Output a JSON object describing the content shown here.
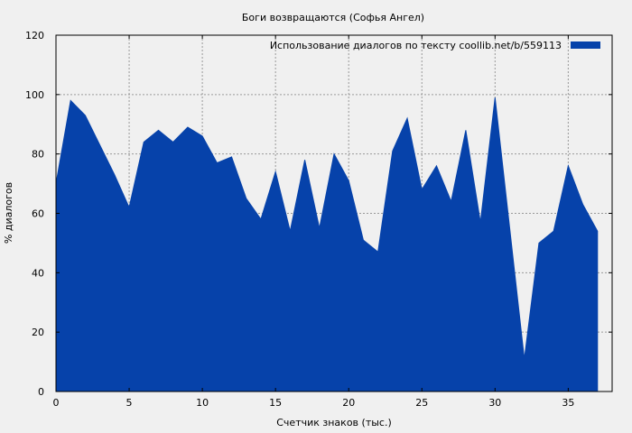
{
  "chart_data": {
    "type": "area",
    "title": "Боги возвращаются (Софья Ангел)",
    "xlabel": "Счетчик знаков (тыс.)",
    "ylabel": "% диалогов",
    "xlim": [
      0,
      38
    ],
    "ylim": [
      0,
      120
    ],
    "xticks": [
      0,
      5,
      10,
      15,
      20,
      25,
      30,
      35
    ],
    "yticks": [
      0,
      20,
      40,
      60,
      80,
      100,
      120
    ],
    "grid": true,
    "legend_position": "top-right",
    "series": [
      {
        "name": "Использование диалогов по тексту  coollib.net/b/559113",
        "color": "#0642aa",
        "x": [
          0,
          1,
          2,
          3,
          4,
          5,
          6,
          7,
          8,
          9,
          10,
          11,
          12,
          13,
          14,
          15,
          16,
          17,
          18,
          19,
          20,
          21,
          22,
          23,
          24,
          25,
          26,
          27,
          28,
          29,
          30,
          31,
          32,
          33,
          34,
          35,
          36,
          37
        ],
        "values": [
          70,
          98,
          93,
          83,
          73,
          62,
          84,
          88,
          84,
          89,
          86,
          77,
          79,
          65,
          58,
          74,
          54,
          78,
          55,
          80,
          71,
          51,
          47,
          81,
          92,
          68,
          76,
          64,
          88,
          57,
          99,
          55,
          11,
          50,
          54,
          76,
          63,
          54
        ]
      }
    ]
  }
}
